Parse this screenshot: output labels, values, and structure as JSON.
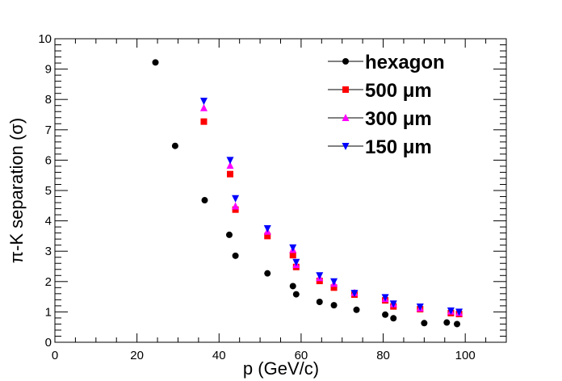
{
  "chart_data": {
    "type": "scatter",
    "title": "",
    "xlabel": "p (GeV/c)",
    "ylabel": "π-K separation (σ)",
    "xlim": [
      0,
      110
    ],
    "ylim": [
      0,
      10
    ],
    "x_ticks": [
      "0",
      "20",
      "40",
      "60",
      "80",
      "100"
    ],
    "y_ticks": [
      "0",
      "1",
      "2",
      "3",
      "4",
      "5",
      "6",
      "7",
      "8",
      "9",
      "10"
    ],
    "legend_position": "top-right",
    "series": [
      {
        "name": "hexagon",
        "marker": "circle",
        "color": "#000000",
        "points": [
          [
            24.5,
            9.22
          ],
          [
            29.3,
            6.47
          ],
          [
            36.5,
            4.68
          ],
          [
            42.5,
            3.54
          ],
          [
            44.0,
            2.85
          ],
          [
            51.8,
            2.27
          ],
          [
            58.0,
            1.85
          ],
          [
            58.8,
            1.58
          ],
          [
            64.5,
            1.33
          ],
          [
            68.0,
            1.22
          ],
          [
            73.5,
            1.07
          ],
          [
            80.5,
            0.91
          ],
          [
            82.5,
            0.79
          ],
          [
            90.0,
            0.63
          ],
          [
            95.5,
            0.65
          ],
          [
            98.0,
            0.6
          ]
        ]
      },
      {
        "name": "500 μm",
        "marker": "square",
        "color": "#ff0000",
        "points": [
          [
            36.3,
            7.27
          ],
          [
            42.7,
            5.54
          ],
          [
            44.0,
            4.37
          ],
          [
            51.8,
            3.5
          ],
          [
            58.0,
            2.87
          ],
          [
            58.8,
            2.48
          ],
          [
            64.5,
            2.02
          ],
          [
            68.0,
            1.8
          ],
          [
            73.0,
            1.57
          ],
          [
            80.5,
            1.38
          ],
          [
            82.5,
            1.18
          ],
          [
            89.0,
            1.09
          ],
          [
            96.5,
            0.96
          ],
          [
            98.5,
            0.93
          ]
        ]
      },
      {
        "name": "300 μm",
        "marker": "triangle-up",
        "color": "#ff00ff",
        "points": [
          [
            36.3,
            7.72
          ],
          [
            42.7,
            5.82
          ],
          [
            44.0,
            4.48
          ],
          [
            51.8,
            3.65
          ],
          [
            58.0,
            3.05
          ],
          [
            58.8,
            2.55
          ],
          [
            64.5,
            2.12
          ],
          [
            68.0,
            1.93
          ],
          [
            73.0,
            1.63
          ],
          [
            80.5,
            1.43
          ],
          [
            82.5,
            1.26
          ],
          [
            89.0,
            1.12
          ],
          [
            96.5,
            1.02
          ],
          [
            98.5,
            0.97
          ]
        ]
      },
      {
        "name": "150 μm",
        "marker": "triangle-down",
        "color": "#0000ff",
        "points": [
          [
            36.3,
            7.95
          ],
          [
            42.7,
            6.0
          ],
          [
            44.0,
            4.74
          ],
          [
            51.8,
            3.75
          ],
          [
            58.0,
            3.12
          ],
          [
            58.8,
            2.64
          ],
          [
            64.5,
            2.2
          ],
          [
            68.0,
            2.0
          ],
          [
            73.0,
            1.62
          ],
          [
            80.5,
            1.48
          ],
          [
            82.5,
            1.27
          ],
          [
            89.0,
            1.17
          ],
          [
            96.5,
            1.04
          ],
          [
            98.5,
            1.0
          ]
        ]
      }
    ]
  }
}
